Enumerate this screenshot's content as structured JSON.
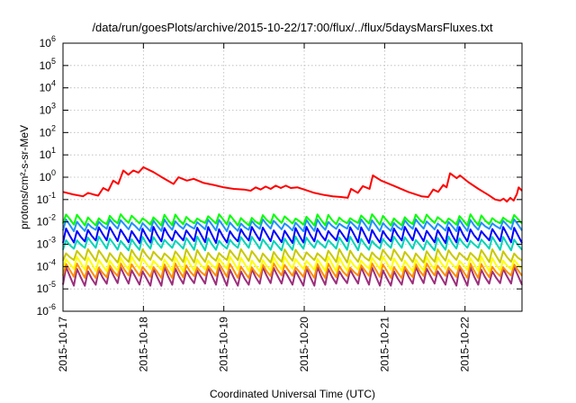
{
  "chart_data": {
    "type": "line",
    "title": "/data/run/goesPlots/archive/2015-10-22/17:00/flux/../flux/5daysMarsFluxes.txt",
    "xlabel": "Coordinated Universal Time (UTC)",
    "ylabel": "protons/cm²-s-sr-MeV",
    "y_scale": "log",
    "ylim": [
      1e-06,
      1000000.0
    ],
    "y_ticks": [
      {
        "base": "10",
        "exp": "-6",
        "value": 1e-06
      },
      {
        "base": "10",
        "exp": "-5",
        "value": 1e-05
      },
      {
        "base": "10",
        "exp": "-4",
        "value": 0.0001
      },
      {
        "base": "10",
        "exp": "-3",
        "value": 0.001
      },
      {
        "base": "10",
        "exp": "-2",
        "value": 0.01
      },
      {
        "base": "10",
        "exp": "-1",
        "value": 0.1
      },
      {
        "base": "10",
        "exp": "0",
        "value": 1
      },
      {
        "base": "10",
        "exp": "1",
        "value": 10
      },
      {
        "base": "10",
        "exp": "2",
        "value": 100
      },
      {
        "base": "10",
        "exp": "3",
        "value": 1000
      },
      {
        "base": "10",
        "exp": "4",
        "value": 10000
      },
      {
        "base": "10",
        "exp": "5",
        "value": 100000
      },
      {
        "base": "10",
        "exp": "6",
        "value": 1000000
      }
    ],
    "xlim": [
      "2015-10-17 00:00",
      "2015-10-22 17:00"
    ],
    "x_ticks": [
      "2015-10-17",
      "2015-10-18",
      "2015-10-19",
      "2015-10-20",
      "2015-10-21",
      "2015-10-22"
    ],
    "grid": true,
    "legend": "none",
    "series": [
      {
        "color": "#ff0000",
        "sawtooth": false,
        "points": [
          [
            "2015-10-17 00:00",
            0.22
          ],
          [
            "2015-10-17 03:00",
            0.17
          ],
          [
            "2015-10-17 06:00",
            0.14
          ],
          [
            "2015-10-17 07:30",
            0.2
          ],
          [
            "2015-10-17 09:00",
            0.17
          ],
          [
            "2015-10-17 10:30",
            0.15
          ],
          [
            "2015-10-17 12:00",
            0.33
          ],
          [
            "2015-10-17 13:30",
            0.25
          ],
          [
            "2015-10-17 15:00",
            0.7
          ],
          [
            "2015-10-17 16:30",
            0.5
          ],
          [
            "2015-10-17 18:00",
            2.0
          ],
          [
            "2015-10-17 19:30",
            1.3
          ],
          [
            "2015-10-17 21:00",
            2.0
          ],
          [
            "2015-10-17 22:30",
            1.6
          ],
          [
            "2015-10-18 00:00",
            2.8
          ],
          [
            "2015-10-18 03:00",
            1.7
          ],
          [
            "2015-10-18 06:00",
            0.9
          ],
          [
            "2015-10-18 09:00",
            0.5
          ],
          [
            "2015-10-18 10:30",
            1.0
          ],
          [
            "2015-10-18 13:00",
            0.7
          ],
          [
            "2015-10-18 15:00",
            0.85
          ],
          [
            "2015-10-18 18:00",
            0.55
          ],
          [
            "2015-10-18 21:00",
            0.45
          ],
          [
            "2015-10-19 00:00",
            0.35
          ],
          [
            "2015-10-19 03:00",
            0.3
          ],
          [
            "2015-10-19 06:00",
            0.28
          ],
          [
            "2015-10-19 08:00",
            0.25
          ],
          [
            "2015-10-19 09:30",
            0.35
          ],
          [
            "2015-10-19 11:00",
            0.28
          ],
          [
            "2015-10-19 12:30",
            0.38
          ],
          [
            "2015-10-19 14:00",
            0.3
          ],
          [
            "2015-10-19 15:30",
            0.42
          ],
          [
            "2015-10-19 17:00",
            0.33
          ],
          [
            "2015-10-19 18:30",
            0.42
          ],
          [
            "2015-10-19 20:00",
            0.33
          ],
          [
            "2015-10-19 22:00",
            0.35
          ],
          [
            "2015-10-20 00:00",
            0.28
          ],
          [
            "2015-10-20 03:00",
            0.2
          ],
          [
            "2015-10-20 06:00",
            0.16
          ],
          [
            "2015-10-20 08:30",
            0.14
          ],
          [
            "2015-10-20 11:00",
            0.13
          ],
          [
            "2015-10-20 13:00",
            0.12
          ],
          [
            "2015-10-20 14:00",
            0.3
          ],
          [
            "2015-10-20 16:00",
            0.2
          ],
          [
            "2015-10-20 17:30",
            0.4
          ],
          [
            "2015-10-20 19:30",
            0.3
          ],
          [
            "2015-10-20 20:30",
            1.2
          ],
          [
            "2015-10-20 23:00",
            0.7
          ],
          [
            "2015-10-21 03:00",
            0.4
          ],
          [
            "2015-10-21 07:00",
            0.22
          ],
          [
            "2015-10-21 11:00",
            0.14
          ],
          [
            "2015-10-21 13:00",
            0.13
          ],
          [
            "2015-10-21 14:30",
            0.28
          ],
          [
            "2015-10-21 16:00",
            0.22
          ],
          [
            "2015-10-21 17:30",
            0.45
          ],
          [
            "2015-10-21 18:30",
            0.35
          ],
          [
            "2015-10-21 19:30",
            1.5
          ],
          [
            "2015-10-21 21:30",
            0.9
          ],
          [
            "2015-10-21 22:30",
            1.2
          ],
          [
            "2015-10-22 01:00",
            0.6
          ],
          [
            "2015-10-22 04:00",
            0.3
          ],
          [
            "2015-10-22 07:00",
            0.16
          ],
          [
            "2015-10-22 09:00",
            0.1
          ],
          [
            "2015-10-22 10:30",
            0.09
          ],
          [
            "2015-10-22 11:30",
            0.11
          ],
          [
            "2015-10-22 12:30",
            0.08
          ],
          [
            "2015-10-22 13:30",
            0.12
          ],
          [
            "2015-10-22 14:30",
            0.09
          ],
          [
            "2015-10-22 15:30",
            0.18
          ],
          [
            "2015-10-22 16:00",
            0.35
          ],
          [
            "2015-10-22 17:00",
            0.25
          ]
        ]
      },
      {
        "color": "#00ff00",
        "sawtooth": true,
        "teeth": 42,
        "low": 0.009,
        "high": 0.022
      },
      {
        "color": "#1e90ff",
        "sawtooth": true,
        "teeth": 42,
        "low": 0.005,
        "high": 0.013
      },
      {
        "color": "#0000ff",
        "sawtooth": true,
        "teeth": 42,
        "low": 0.0015,
        "high": 0.006
      },
      {
        "color": "#00d4b8",
        "sawtooth": true,
        "teeth": 42,
        "low": 0.0007,
        "high": 0.0022
      },
      {
        "color": "#c8c800",
        "sawtooth": true,
        "teeth": 42,
        "low": 0.0002,
        "high": 0.0006
      },
      {
        "color": "#ffff00",
        "sawtooth": true,
        "teeth": 42,
        "low": 8e-05,
        "high": 0.00028
      },
      {
        "color": "#ff8c00",
        "sawtooth": true,
        "teeth": 42,
        "low": 4e-05,
        "high": 0.00014
      },
      {
        "color": "#9c2d7c",
        "sawtooth": true,
        "teeth": 42,
        "low": 1.8e-05,
        "high": 9.5e-05
      }
    ]
  }
}
